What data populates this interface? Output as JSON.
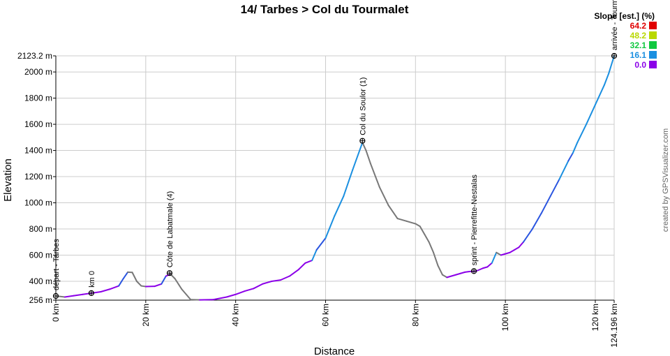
{
  "chart_data": {
    "type": "line",
    "title": "14/ Tarbes > Col du Tourmalet",
    "xlabel": "Distance",
    "ylabel": "Elevation",
    "xlim": [
      0,
      124.196
    ],
    "ylim": [
      256,
      2123.2
    ],
    "grid": true,
    "x_ticks": [
      {
        "value": 0,
        "label": "0 km"
      },
      {
        "value": 20,
        "label": "20 km"
      },
      {
        "value": 40,
        "label": "40 km"
      },
      {
        "value": 60,
        "label": "60 km"
      },
      {
        "value": 80,
        "label": "80 km"
      },
      {
        "value": 100,
        "label": "100 km"
      },
      {
        "value": 120,
        "label": "120 km"
      },
      {
        "value": 124.196,
        "label": "124.196 km"
      }
    ],
    "y_ticks": [
      {
        "value": 256,
        "label": "256 m"
      },
      {
        "value": 400,
        "label": "400 m"
      },
      {
        "value": 600,
        "label": "600 m"
      },
      {
        "value": 800,
        "label": "800 m"
      },
      {
        "value": 1000,
        "label": "1000 m"
      },
      {
        "value": 1200,
        "label": "1200 m"
      },
      {
        "value": 1400,
        "label": "1400 m"
      },
      {
        "value": 1600,
        "label": "1600 m"
      },
      {
        "value": 1800,
        "label": "1800 m"
      },
      {
        "value": 2000,
        "label": "2000 m"
      },
      {
        "value": 2123.2,
        "label": "2123.2 m"
      }
    ],
    "series": [
      {
        "x": [
          0,
          2,
          4,
          6,
          8,
          10,
          12,
          14,
          15,
          16,
          17,
          18,
          19,
          20,
          22,
          23.5,
          24.5,
          25.5,
          26.5,
          28,
          30,
          32,
          35,
          38,
          40,
          42,
          44,
          46,
          48,
          50,
          52,
          54,
          55.5,
          57,
          58,
          60,
          62,
          64,
          66,
          68.2,
          69,
          70,
          72,
          74,
          76,
          78,
          80,
          81,
          82,
          83,
          84,
          85,
          86,
          87,
          88,
          89,
          90,
          91,
          92,
          93.5,
          95,
          96,
          97,
          97.5,
          98,
          99,
          100,
          101,
          102,
          103,
          104,
          106,
          108,
          110,
          112,
          114,
          115,
          116,
          118,
          120,
          122,
          123,
          124.196
        ],
        "y": [
          288,
          280,
          290,
          300,
          310,
          320,
          340,
          365,
          420,
          470,
          468,
          400,
          365,
          360,
          362,
          380,
          440,
          455,
          420,
          340,
          260,
          258,
          260,
          280,
          300,
          325,
          345,
          380,
          400,
          410,
          440,
          490,
          540,
          560,
          640,
          730,
          900,
          1050,
          1250,
          1460,
          1400,
          1300,
          1120,
          980,
          880,
          860,
          840,
          820,
          760,
          700,
          620,
          520,
          450,
          430,
          440,
          450,
          460,
          470,
          475,
          478,
          500,
          510,
          540,
          580,
          620,
          600,
          610,
          620,
          640,
          660,
          700,
          800,
          920,
          1050,
          1180,
          1320,
          1380,
          1460,
          1600,
          1750,
          1900,
          1990,
          2123.2
        ]
      }
    ],
    "waypoints": [
      {
        "x": 0,
        "y": 288,
        "label": "départ - Tarbes"
      },
      {
        "x": 7.9,
        "y": 310,
        "label": "km 0"
      },
      {
        "x": 25.3,
        "y": 463,
        "label": "Côte de Labatmale (4)"
      },
      {
        "x": 68.2,
        "y": 1474,
        "label": "Col du Soulor (1)"
      },
      {
        "x": 93.0,
        "y": 478,
        "label": "sprint - Pierrefitte-Nestalas"
      },
      {
        "x": 124.196,
        "y": 2123.2,
        "label": "arrivée - Tourmalet"
      }
    ],
    "legend": {
      "title": "Slope [est.] (%)",
      "placement": "top-right",
      "items": [
        {
          "label": "64.2",
          "color": "#e00000"
        },
        {
          "label": "48.2",
          "color": "#b8d800"
        },
        {
          "label": "32.1",
          "color": "#10c840"
        },
        {
          "label": "16.1",
          "color": "#1a8fe0"
        },
        {
          "label": "0.0",
          "color": "#8b00e8"
        }
      ]
    },
    "credit": "created by GPSVisualizer.com"
  }
}
